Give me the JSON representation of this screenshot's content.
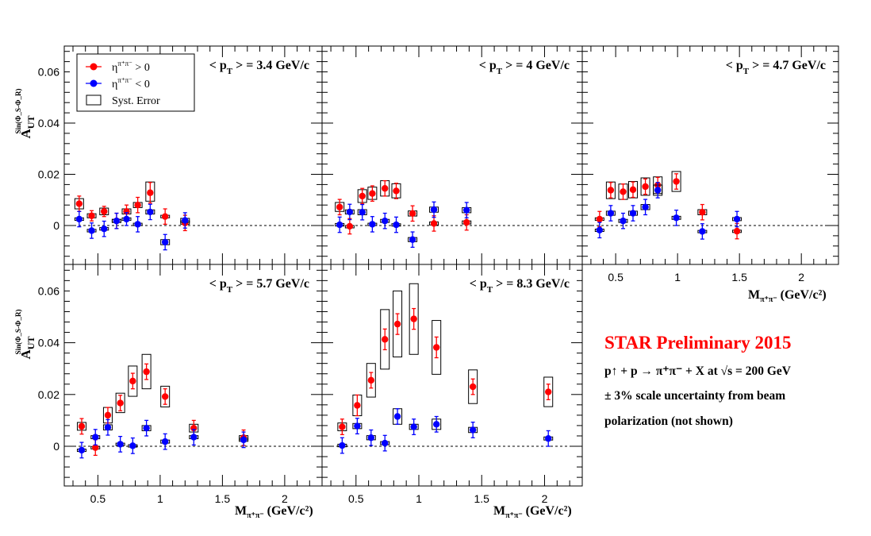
{
  "figure": {
    "y_axis_label": {
      "main": "A",
      "sub": "UT",
      "sup": "Sin(Φ_S-Φ_R)"
    },
    "x_axis_label": {
      "main": "M",
      "sub": "π⁺π⁻",
      "unit": "(GeV/c²)"
    },
    "y_tick_labels": [
      "0",
      "0.02",
      "0.04",
      "0.06"
    ],
    "x_tick_labels": [
      "0.5",
      "1",
      "1.5",
      "2"
    ],
    "legend": {
      "entries": [
        {
          "symbol": "dot",
          "color": "#ff0000",
          "label_main": "η",
          "label_sup": "π⁺π⁻",
          "label_rest": " > 0"
        },
        {
          "symbol": "dot",
          "color": "#0000ff",
          "label_main": "η",
          "label_sup": "π⁺π⁻",
          "label_rest": " < 0"
        },
        {
          "symbol": "box",
          "color": "#000000",
          "label_main": "Syst. Error",
          "label_sup": "",
          "label_rest": ""
        }
      ]
    }
  },
  "annotations": {
    "star_title": "STAR Preliminary 2015",
    "reaction": "p↑ + p → π⁺π⁻ + X at √s = 200 GeV",
    "scale_uncertainty": "± 3% scale uncertainty from beam",
    "polarization": "polarization (not shown)"
  },
  "colors": {
    "eta_positive": "#ff0000",
    "eta_negative": "#0000ff",
    "syst_box": "#000000"
  },
  "chart_data": [
    {
      "type": "scatter",
      "panel_label": "< p_T > = 3.4 GeV/c",
      "pt_value": "3.4",
      "xlim": [
        0.23,
        2.3
      ],
      "ylim": [
        -0.015,
        0.07
      ],
      "series": [
        {
          "name": "η^{π+π-} > 0",
          "color": "#ff0000",
          "points": [
            {
              "x": 0.35,
              "y": 0.0085,
              "err": 0.003,
              "syst_lo": 0.0065,
              "syst_hi": 0.0105
            },
            {
              "x": 0.45,
              "y": 0.0038,
              "err": 0.002,
              "syst_lo": 0.003,
              "syst_hi": 0.0046
            },
            {
              "x": 0.55,
              "y": 0.0055,
              "err": 0.002,
              "syst_lo": 0.0042,
              "syst_hi": 0.0068
            },
            {
              "x": 0.65,
              "y": 0.0018,
              "err": 0.003,
              "syst_lo": 0.0012,
              "syst_hi": 0.0024
            },
            {
              "x": 0.73,
              "y": 0.0055,
              "err": 0.0025,
              "syst_lo": 0.0045,
              "syst_hi": 0.0065
            },
            {
              "x": 0.82,
              "y": 0.008,
              "err": 0.003,
              "syst_lo": 0.007,
              "syst_hi": 0.009
            },
            {
              "x": 0.92,
              "y": 0.0128,
              "err": 0.004,
              "syst_lo": 0.0095,
              "syst_hi": 0.017
            },
            {
              "x": 1.04,
              "y": 0.0035,
              "err": 0.003,
              "syst_lo": 0.003,
              "syst_hi": 0.004
            },
            {
              "x": 1.2,
              "y": 0.001,
              "err": 0.003,
              "syst_lo": 0.0005,
              "syst_hi": 0.0018
            }
          ]
        },
        {
          "name": "η^{π+π-} < 0",
          "color": "#0000ff",
          "points": [
            {
              "x": 0.35,
              "y": 0.0025,
              "err": 0.003,
              "syst_lo": 0.002,
              "syst_hi": 0.003
            },
            {
              "x": 0.45,
              "y": -0.002,
              "err": 0.003,
              "syst_lo": -0.0025,
              "syst_hi": -0.0015
            },
            {
              "x": 0.55,
              "y": -0.0013,
              "err": 0.003,
              "syst_lo": -0.0018,
              "syst_hi": -0.0008
            },
            {
              "x": 0.65,
              "y": 0.0018,
              "err": 0.003,
              "syst_lo": 0.0012,
              "syst_hi": 0.0024
            },
            {
              "x": 0.73,
              "y": 0.0025,
              "err": 0.0025,
              "syst_lo": 0.002,
              "syst_hi": 0.003
            },
            {
              "x": 0.82,
              "y": 0.0005,
              "err": 0.003,
              "syst_lo": 0.0001,
              "syst_hi": 0.0009
            },
            {
              "x": 0.92,
              "y": 0.0053,
              "err": 0.003,
              "syst_lo": 0.0045,
              "syst_hi": 0.0061
            },
            {
              "x": 1.04,
              "y": -0.0065,
              "err": 0.003,
              "syst_lo": -0.0075,
              "syst_hi": -0.0055
            },
            {
              "x": 1.2,
              "y": 0.002,
              "err": 0.003,
              "syst_lo": 0.0012,
              "syst_hi": 0.0028
            }
          ]
        }
      ]
    },
    {
      "type": "scatter",
      "panel_label": "< p_T > = 4 GeV/c",
      "pt_value": "4",
      "xlim": [
        0.23,
        2.3
      ],
      "ylim": [
        -0.015,
        0.07
      ],
      "series": [
        {
          "name": "η^{π+π-} > 0",
          "color": "#ff0000",
          "points": [
            {
              "x": 0.37,
              "y": 0.0072,
              "err": 0.003,
              "syst_lo": 0.0055,
              "syst_hi": 0.009
            },
            {
              "x": 0.45,
              "y": -0.0003,
              "err": 0.003,
              "syst_lo": -0.0006,
              "syst_hi": 0.0
            },
            {
              "x": 0.55,
              "y": 0.0115,
              "err": 0.003,
              "syst_lo": 0.009,
              "syst_hi": 0.014
            },
            {
              "x": 0.63,
              "y": 0.0125,
              "err": 0.003,
              "syst_lo": 0.0102,
              "syst_hi": 0.015
            },
            {
              "x": 0.73,
              "y": 0.0145,
              "err": 0.003,
              "syst_lo": 0.0115,
              "syst_hi": 0.0175
            },
            {
              "x": 0.82,
              "y": 0.0135,
              "err": 0.003,
              "syst_lo": 0.0108,
              "syst_hi": 0.0163
            },
            {
              "x": 0.95,
              "y": 0.0047,
              "err": 0.003,
              "syst_lo": 0.0037,
              "syst_hi": 0.0057
            },
            {
              "x": 1.12,
              "y": 0.0008,
              "err": 0.003,
              "syst_lo": 0.0002,
              "syst_hi": 0.0014
            },
            {
              "x": 1.38,
              "y": 0.0012,
              "err": 0.003,
              "syst_lo": 0.0006,
              "syst_hi": 0.0018
            }
          ]
        },
        {
          "name": "η^{π+π-} < 0",
          "color": "#0000ff",
          "points": [
            {
              "x": 0.37,
              "y": 0.0003,
              "err": 0.003,
              "syst_lo": -0.0002,
              "syst_hi": 0.0008
            },
            {
              "x": 0.45,
              "y": 0.0053,
              "err": 0.003,
              "syst_lo": 0.0045,
              "syst_hi": 0.0061
            },
            {
              "x": 0.55,
              "y": 0.0052,
              "err": 0.003,
              "syst_lo": 0.0042,
              "syst_hi": 0.0062
            },
            {
              "x": 0.63,
              "y": 0.0005,
              "err": 0.003,
              "syst_lo": 0.0001,
              "syst_hi": 0.0009
            },
            {
              "x": 0.73,
              "y": 0.0018,
              "err": 0.003,
              "syst_lo": 0.0012,
              "syst_hi": 0.0024
            },
            {
              "x": 0.82,
              "y": 0.0003,
              "err": 0.003,
              "syst_lo": -0.0001,
              "syst_hi": 0.0007
            },
            {
              "x": 0.95,
              "y": -0.0055,
              "err": 0.003,
              "syst_lo": -0.0063,
              "syst_hi": -0.0047
            },
            {
              "x": 1.12,
              "y": 0.0062,
              "err": 0.003,
              "syst_lo": 0.0052,
              "syst_hi": 0.0072
            },
            {
              "x": 1.38,
              "y": 0.006,
              "err": 0.003,
              "syst_lo": 0.005,
              "syst_hi": 0.007
            }
          ]
        }
      ]
    },
    {
      "type": "scatter",
      "panel_label": "< p_T > = 4.7 GeV/c",
      "pt_value": "4.7",
      "xlim": [
        0.23,
        2.3
      ],
      "ylim": [
        -0.015,
        0.07
      ],
      "series": [
        {
          "name": "η^{π+π-} > 0",
          "color": "#ff0000",
          "points": [
            {
              "x": 0.37,
              "y": 0.0025,
              "err": 0.003,
              "syst_lo": 0.002,
              "syst_hi": 0.003
            },
            {
              "x": 0.46,
              "y": 0.0138,
              "err": 0.003,
              "syst_lo": 0.0105,
              "syst_hi": 0.017
            },
            {
              "x": 0.56,
              "y": 0.0132,
              "err": 0.003,
              "syst_lo": 0.0102,
              "syst_hi": 0.0162
            },
            {
              "x": 0.64,
              "y": 0.014,
              "err": 0.003,
              "syst_lo": 0.0108,
              "syst_hi": 0.0172
            },
            {
              "x": 0.74,
              "y": 0.0152,
              "err": 0.003,
              "syst_lo": 0.0118,
              "syst_hi": 0.0186
            },
            {
              "x": 0.84,
              "y": 0.0158,
              "err": 0.003,
              "syst_lo": 0.0125,
              "syst_hi": 0.019
            },
            {
              "x": 0.99,
              "y": 0.0172,
              "err": 0.003,
              "syst_lo": 0.0133,
              "syst_hi": 0.0211
            },
            {
              "x": 1.2,
              "y": 0.0052,
              "err": 0.003,
              "syst_lo": 0.0042,
              "syst_hi": 0.0062
            },
            {
              "x": 1.48,
              "y": -0.0022,
              "err": 0.003,
              "syst_lo": -0.0026,
              "syst_hi": -0.0018
            }
          ]
        },
        {
          "name": "η^{π+π-} < 0",
          "color": "#0000ff",
          "points": [
            {
              "x": 0.37,
              "y": -0.0018,
              "err": 0.003,
              "syst_lo": -0.0022,
              "syst_hi": -0.0014
            },
            {
              "x": 0.46,
              "y": 0.0048,
              "err": 0.003,
              "syst_lo": 0.004,
              "syst_hi": 0.0056
            },
            {
              "x": 0.56,
              "y": 0.0018,
              "err": 0.003,
              "syst_lo": 0.0012,
              "syst_hi": 0.0024
            },
            {
              "x": 0.64,
              "y": 0.0048,
              "err": 0.003,
              "syst_lo": 0.004,
              "syst_hi": 0.0056
            },
            {
              "x": 0.74,
              "y": 0.0072,
              "err": 0.003,
              "syst_lo": 0.0062,
              "syst_hi": 0.0082
            },
            {
              "x": 0.84,
              "y": 0.0138,
              "err": 0.003,
              "syst_lo": 0.0118,
              "syst_hi": 0.0158
            },
            {
              "x": 0.99,
              "y": 0.003,
              "err": 0.003,
              "syst_lo": 0.0024,
              "syst_hi": 0.0036
            },
            {
              "x": 1.2,
              "y": -0.0023,
              "err": 0.003,
              "syst_lo": -0.0027,
              "syst_hi": -0.0019
            },
            {
              "x": 1.48,
              "y": 0.0025,
              "err": 0.003,
              "syst_lo": 0.0019,
              "syst_hi": 0.0031
            }
          ]
        }
      ]
    },
    {
      "type": "scatter",
      "panel_label": "< p_T > = 5.7 GeV/c",
      "pt_value": "5.7",
      "xlim": [
        0.23,
        2.3
      ],
      "ylim": [
        -0.015,
        0.07
      ],
      "series": [
        {
          "name": "η^{π+π-} > 0",
          "color": "#ff0000",
          "points": [
            {
              "x": 0.37,
              "y": 0.0077,
              "err": 0.003,
              "syst_lo": 0.0062,
              "syst_hi": 0.0092
            },
            {
              "x": 0.48,
              "y": -0.0005,
              "err": 0.003,
              "syst_lo": -0.0009,
              "syst_hi": -0.0001
            },
            {
              "x": 0.58,
              "y": 0.012,
              "err": 0.003,
              "syst_lo": 0.009,
              "syst_hi": 0.015
            },
            {
              "x": 0.68,
              "y": 0.0167,
              "err": 0.003,
              "syst_lo": 0.013,
              "syst_hi": 0.0205
            },
            {
              "x": 0.78,
              "y": 0.0252,
              "err": 0.003,
              "syst_lo": 0.0193,
              "syst_hi": 0.031
            },
            {
              "x": 0.89,
              "y": 0.0288,
              "err": 0.003,
              "syst_lo": 0.0222,
              "syst_hi": 0.0355
            },
            {
              "x": 1.04,
              "y": 0.0192,
              "err": 0.003,
              "syst_lo": 0.0152,
              "syst_hi": 0.0232
            },
            {
              "x": 1.27,
              "y": 0.007,
              "err": 0.003,
              "syst_lo": 0.0055,
              "syst_hi": 0.0085
            },
            {
              "x": 1.67,
              "y": 0.0033,
              "err": 0.003,
              "syst_lo": 0.0025,
              "syst_hi": 0.0041
            }
          ]
        },
        {
          "name": "η^{π+π-} < 0",
          "color": "#0000ff",
          "points": [
            {
              "x": 0.37,
              "y": -0.0015,
              "err": 0.003,
              "syst_lo": -0.0019,
              "syst_hi": -0.0011
            },
            {
              "x": 0.48,
              "y": 0.0035,
              "err": 0.003,
              "syst_lo": 0.0029,
              "syst_hi": 0.0041
            },
            {
              "x": 0.58,
              "y": 0.0073,
              "err": 0.003,
              "syst_lo": 0.0063,
              "syst_hi": 0.0083
            },
            {
              "x": 0.68,
              "y": 0.0008,
              "err": 0.003,
              "syst_lo": 0.0004,
              "syst_hi": 0.0012
            },
            {
              "x": 0.78,
              "y": 0.0002,
              "err": 0.003,
              "syst_lo": -0.0002,
              "syst_hi": 0.0006
            },
            {
              "x": 0.89,
              "y": 0.007,
              "err": 0.003,
              "syst_lo": 0.006,
              "syst_hi": 0.008
            },
            {
              "x": 1.04,
              "y": 0.0018,
              "err": 0.003,
              "syst_lo": 0.0012,
              "syst_hi": 0.0024
            },
            {
              "x": 1.27,
              "y": 0.0035,
              "err": 0.003,
              "syst_lo": 0.0029,
              "syst_hi": 0.0041
            },
            {
              "x": 1.67,
              "y": 0.0025,
              "err": 0.003,
              "syst_lo": 0.0019,
              "syst_hi": 0.0031
            }
          ]
        }
      ]
    },
    {
      "type": "scatter",
      "panel_label": "< p_T > = 8.3 GeV/c",
      "pt_value": "8.3",
      "xlim": [
        0.23,
        2.3
      ],
      "ylim": [
        -0.015,
        0.07
      ],
      "series": [
        {
          "name": "η^{π+π-} > 0",
          "color": "#ff0000",
          "points": [
            {
              "x": 0.39,
              "y": 0.0075,
              "err": 0.003,
              "syst_lo": 0.006,
              "syst_hi": 0.009
            },
            {
              "x": 0.51,
              "y": 0.0158,
              "err": 0.004,
              "syst_lo": 0.0118,
              "syst_hi": 0.0198
            },
            {
              "x": 0.62,
              "y": 0.0255,
              "err": 0.003,
              "syst_lo": 0.019,
              "syst_hi": 0.032
            },
            {
              "x": 0.73,
              "y": 0.0413,
              "err": 0.004,
              "syst_lo": 0.0298,
              "syst_hi": 0.0528
            },
            {
              "x": 0.83,
              "y": 0.0472,
              "err": 0.004,
              "syst_lo": 0.0345,
              "syst_hi": 0.06
            },
            {
              "x": 0.96,
              "y": 0.0492,
              "err": 0.004,
              "syst_lo": 0.0355,
              "syst_hi": 0.0628
            },
            {
              "x": 1.14,
              "y": 0.0382,
              "err": 0.004,
              "syst_lo": 0.0278,
              "syst_hi": 0.0486
            },
            {
              "x": 1.43,
              "y": 0.023,
              "err": 0.003,
              "syst_lo": 0.0165,
              "syst_hi": 0.0295
            },
            {
              "x": 2.03,
              "y": 0.021,
              "err": 0.003,
              "syst_lo": 0.0153,
              "syst_hi": 0.0267
            }
          ]
        },
        {
          "name": "η^{π+π-} < 0",
          "color": "#0000ff",
          "points": [
            {
              "x": 0.39,
              "y": 0.0003,
              "err": 0.003,
              "syst_lo": -0.0002,
              "syst_hi": 0.0008
            },
            {
              "x": 0.51,
              "y": 0.0078,
              "err": 0.003,
              "syst_lo": 0.0068,
              "syst_hi": 0.0088
            },
            {
              "x": 0.62,
              "y": 0.0033,
              "err": 0.003,
              "syst_lo": 0.0025,
              "syst_hi": 0.0041
            },
            {
              "x": 0.73,
              "y": 0.0012,
              "err": 0.003,
              "syst_lo": 0.0006,
              "syst_hi": 0.0018
            },
            {
              "x": 0.83,
              "y": 0.0115,
              "err": 0.003,
              "syst_lo": 0.0085,
              "syst_hi": 0.0145
            },
            {
              "x": 0.96,
              "y": 0.0075,
              "err": 0.003,
              "syst_lo": 0.0065,
              "syst_hi": 0.0085
            },
            {
              "x": 1.14,
              "y": 0.0085,
              "err": 0.003,
              "syst_lo": 0.0065,
              "syst_hi": 0.0105
            },
            {
              "x": 1.43,
              "y": 0.0063,
              "err": 0.003,
              "syst_lo": 0.0053,
              "syst_hi": 0.0073
            },
            {
              "x": 2.03,
              "y": 0.003,
              "err": 0.003,
              "syst_lo": 0.0024,
              "syst_hi": 0.0036
            }
          ]
        }
      ]
    }
  ]
}
